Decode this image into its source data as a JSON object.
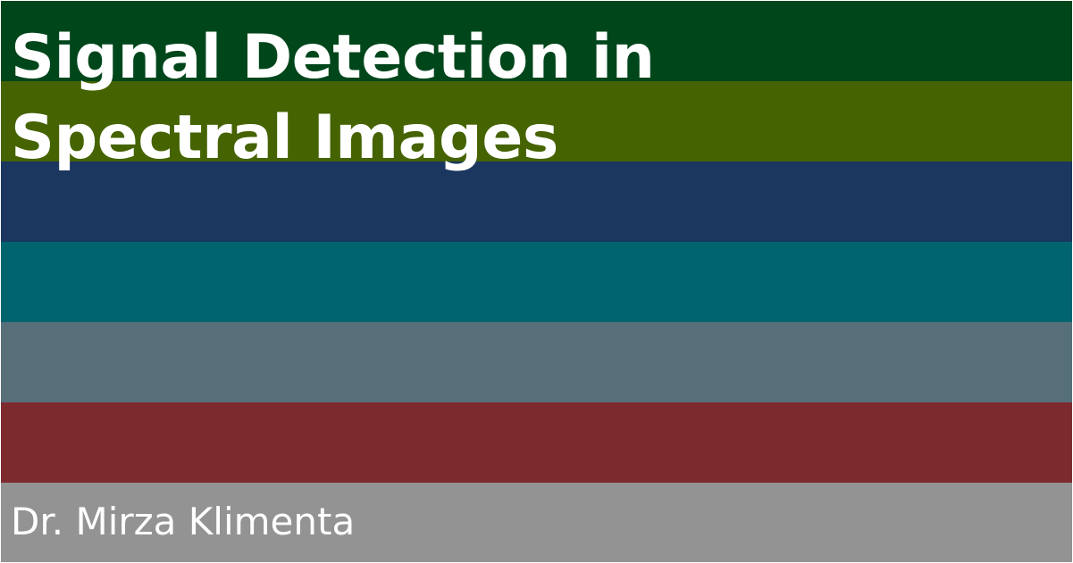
{
  "cover": {
    "title": "Signal Detection in\nSpectral Images",
    "author": "Dr. Mirza Klimenta"
  },
  "band_colors": [
    "#00461b",
    "#456300",
    "#1b375f",
    "#00646f",
    "#566f79",
    "#7d2a2f",
    "#939393"
  ],
  "text_color": "#ffffff"
}
